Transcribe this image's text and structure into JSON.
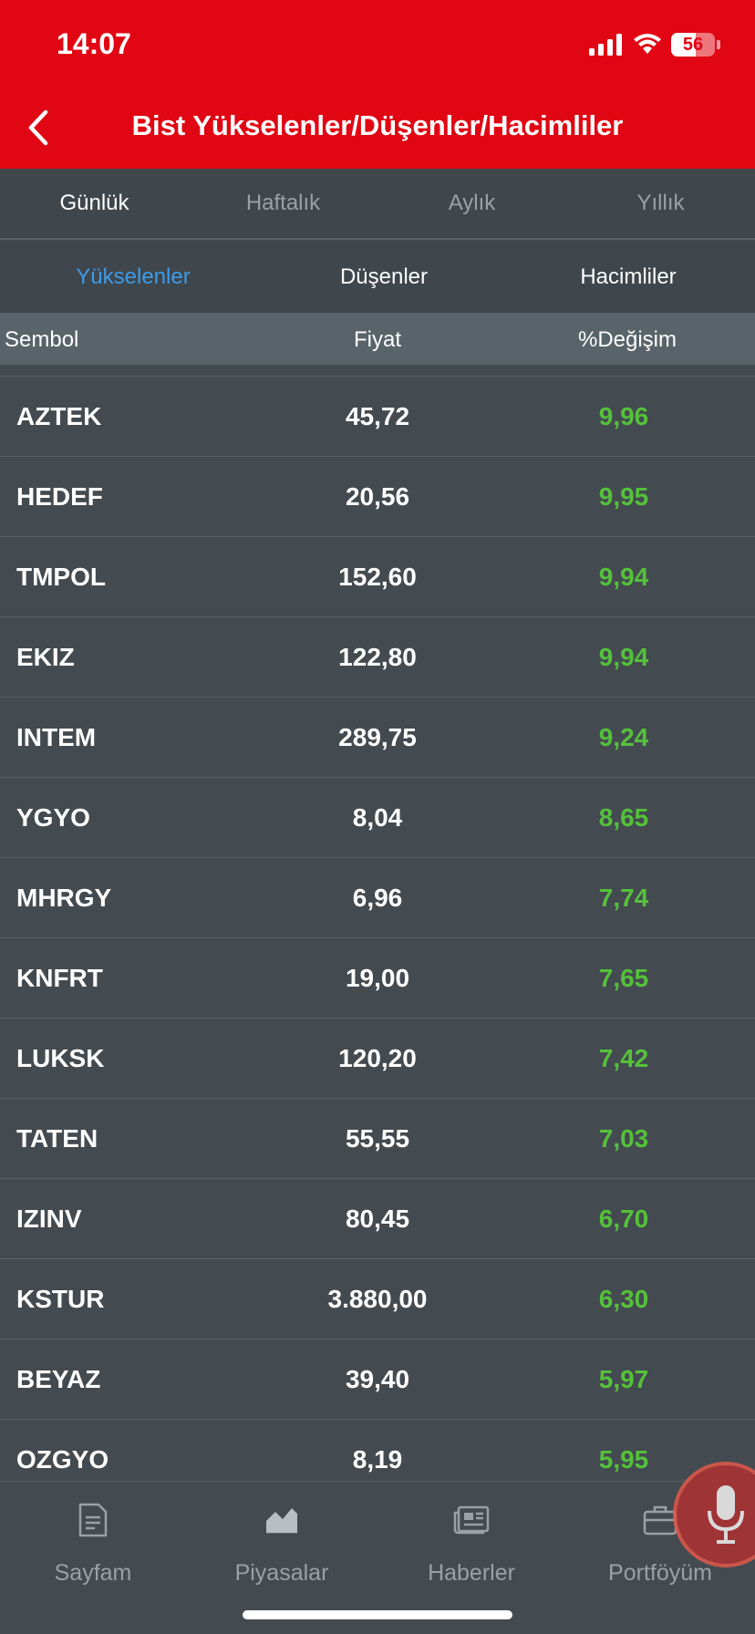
{
  "status_bar": {
    "time": "14:07",
    "battery": "56"
  },
  "header": {
    "title": "Bist Yükselenler/Düşenler/Hacimliler"
  },
  "period_tabs": [
    {
      "label": "Günlük",
      "active": true
    },
    {
      "label": "Haftalık",
      "active": false
    },
    {
      "label": "Aylık",
      "active": false
    },
    {
      "label": "Yıllık",
      "active": false
    }
  ],
  "type_tabs": [
    {
      "label": "Yükselenler",
      "active": true
    },
    {
      "label": "Düşenler",
      "active": false
    },
    {
      "label": "Hacimliler",
      "active": false
    }
  ],
  "table": {
    "columns": {
      "symbol": "Sembol",
      "price": "Fiyat",
      "change": "%Değişim"
    },
    "rows": [
      {
        "symbol": "AZTEK",
        "price": "45,72",
        "change": "9,96"
      },
      {
        "symbol": "HEDEF",
        "price": "20,56",
        "change": "9,95"
      },
      {
        "symbol": "TMPOL",
        "price": "152,60",
        "change": "9,94"
      },
      {
        "symbol": "EKIZ",
        "price": "122,80",
        "change": "9,94"
      },
      {
        "symbol": "INTEM",
        "price": "289,75",
        "change": "9,24"
      },
      {
        "symbol": "YGYO",
        "price": "8,04",
        "change": "8,65"
      },
      {
        "symbol": "MHRGY",
        "price": "6,96",
        "change": "7,74"
      },
      {
        "symbol": "KNFRT",
        "price": "19,00",
        "change": "7,65"
      },
      {
        "symbol": "LUKSK",
        "price": "120,20",
        "change": "7,42"
      },
      {
        "symbol": "TATEN",
        "price": "55,55",
        "change": "7,03"
      },
      {
        "symbol": "IZINV",
        "price": "80,45",
        "change": "6,70"
      },
      {
        "symbol": "KSTUR",
        "price": "3.880,00",
        "change": "6,30"
      },
      {
        "symbol": "BEYAZ",
        "price": "39,40",
        "change": "5,97"
      },
      {
        "symbol": "OZGYO",
        "price": "8,19",
        "change": "5,95"
      }
    ]
  },
  "bottom_nav": [
    {
      "label": "Sayfam",
      "icon": "document-icon"
    },
    {
      "label": "Piyasalar",
      "icon": "market-chart-icon"
    },
    {
      "label": "Haberler",
      "icon": "newspaper-icon"
    },
    {
      "label": "Portföyüm",
      "icon": "briefcase-icon"
    }
  ],
  "colors": {
    "brand_red": "#e10613",
    "positive_green": "#55c13a",
    "active_blue": "#3d9be9",
    "background": "#434a50"
  }
}
